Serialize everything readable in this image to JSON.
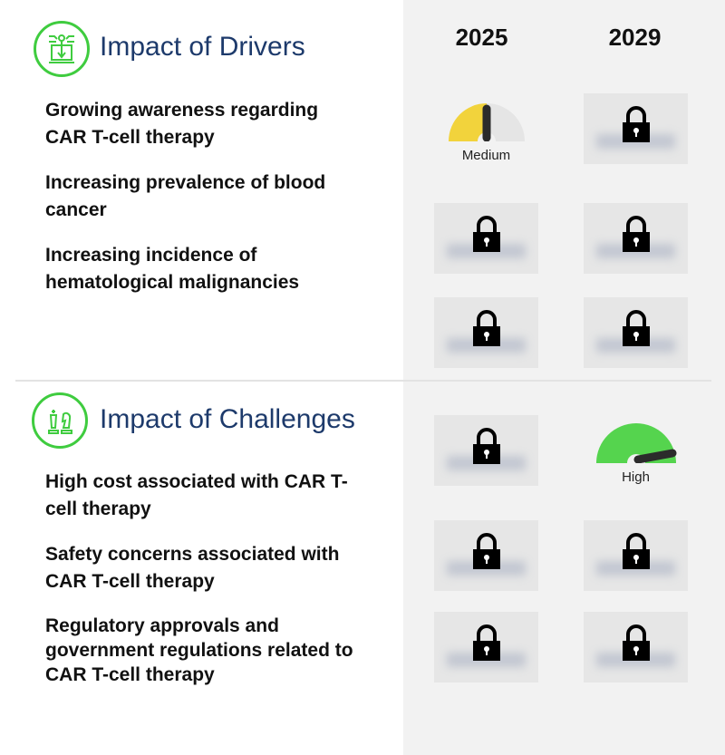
{
  "columns": [
    "2025",
    "2029"
  ],
  "drivers": {
    "title": "Impact of Drivers",
    "icon": "circuit-download-icon",
    "items": [
      "Growing awareness regarding CAR T-cell therapy",
      "Increasing prevalence of blood cancer",
      "Increasing incidence of hematological malignancies"
    ],
    "values": [
      [
        "Medium",
        "locked"
      ],
      [
        "locked",
        "locked"
      ],
      [
        "locked",
        "locked"
      ]
    ]
  },
  "challenges": {
    "title": "Impact of Challenges",
    "icon": "chess-pieces-icon",
    "items": [
      "High cost associated with CAR T-cell therapy",
      "Safety concerns associated with CAR T-cell therapy",
      "Regulatory approvals and government regulations related to CAR T-cell therapy"
    ],
    "values": [
      [
        "locked",
        "High"
      ],
      [
        "locked",
        "locked"
      ],
      [
        "locked",
        "locked"
      ]
    ]
  },
  "gauges": {
    "medium": {
      "label": "Medium",
      "color": "#f2d33c"
    },
    "high": {
      "label": "High",
      "color": "#55d44e"
    }
  },
  "colors": {
    "heading": "#1d3a6b",
    "icon_ring": "#3fcc3f",
    "panel": "#f2f2f2"
  }
}
